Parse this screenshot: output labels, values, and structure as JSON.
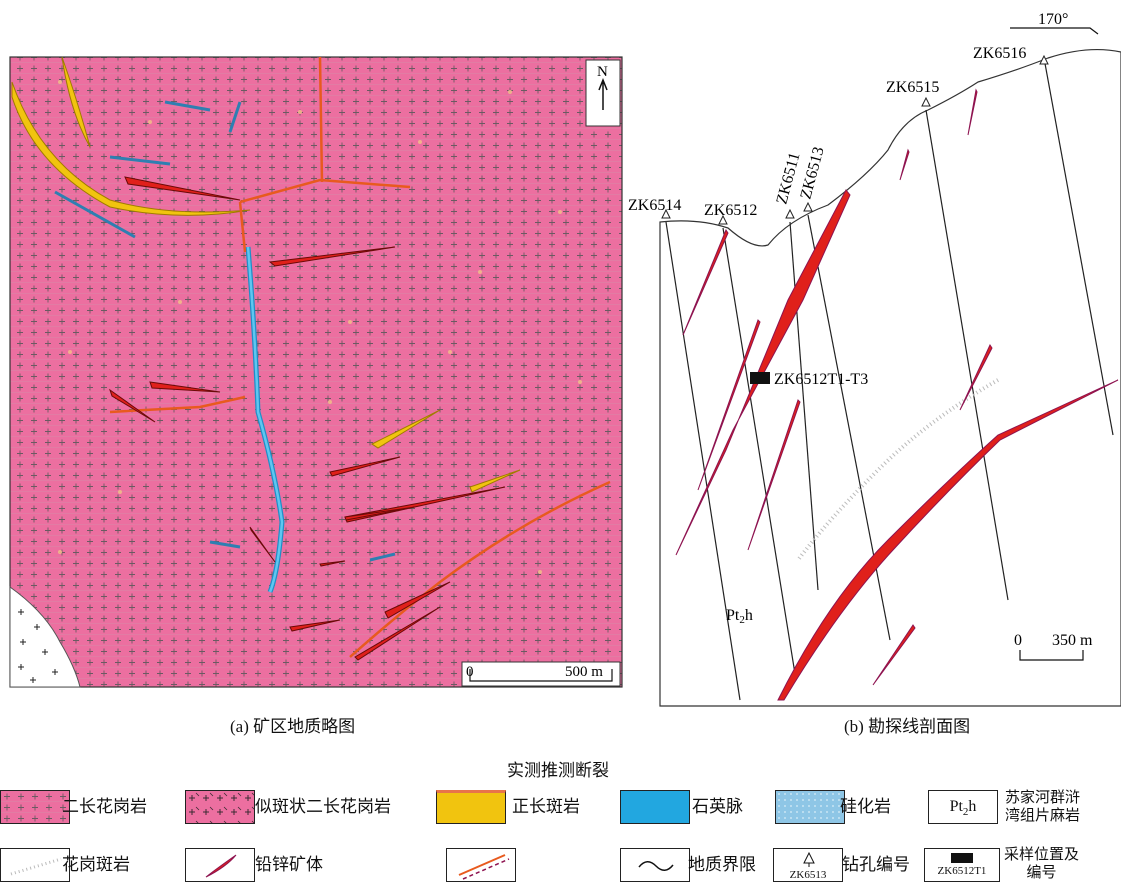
{
  "map_a": {
    "north": "N",
    "scale_zero": "0",
    "scale_value": "500 m",
    "caption": "(a)  矿区地质略图"
  },
  "section_b": {
    "azimuth": "170°",
    "boreholes": [
      "ZK6514",
      "ZK6512",
      "ZK6511",
      "ZK6513",
      "ZK6515",
      "ZK6516"
    ],
    "sample": "ZK6512T1-T3",
    "unit_label": {
      "main": "Pt",
      "sub": "2",
      "tail": "h"
    },
    "scale_zero": "0",
    "scale_value": "350 m",
    "caption": "(b)  勘探线剖面图"
  },
  "legend": {
    "title": "实测推测断裂",
    "colors": {
      "granite": "#ec6fa0",
      "syenite": "#f1c40f",
      "quartz": "#22a7e0",
      "silicified": "#8ec6e6",
      "orebody": "#e0201b",
      "fault": "#e85a1e"
    },
    "items": [
      {
        "key": "monzogranite",
        "label": "二长花岗岩"
      },
      {
        "key": "porphyritic",
        "label": "似斑状二长花岗岩"
      },
      {
        "key": "syenite-porphyry",
        "label": "正长斑岩"
      },
      {
        "key": "quartz-vein",
        "label": "石英脉"
      },
      {
        "key": "silicified-rock",
        "label": "硅化岩"
      },
      {
        "key": "pt2h",
        "box_main": "Pt",
        "box_sub": "2",
        "box_tail": "h",
        "label_l1": "苏家河群浒",
        "label_l2": "湾组片麻岩"
      },
      {
        "key": "granite-porphyry",
        "label": "花岗斑岩"
      },
      {
        "key": "lead-zinc",
        "label": "铅锌矿体"
      },
      {
        "key": "fault",
        "label": ""
      },
      {
        "key": "boundary",
        "label": "地质界限"
      },
      {
        "key": "borehole",
        "box_text": "ZK6513",
        "label": "钻孔编号"
      },
      {
        "key": "sample",
        "box_text": "ZK6512T1",
        "label_l1": "采样位置及",
        "label_l2": "编号"
      }
    ]
  }
}
